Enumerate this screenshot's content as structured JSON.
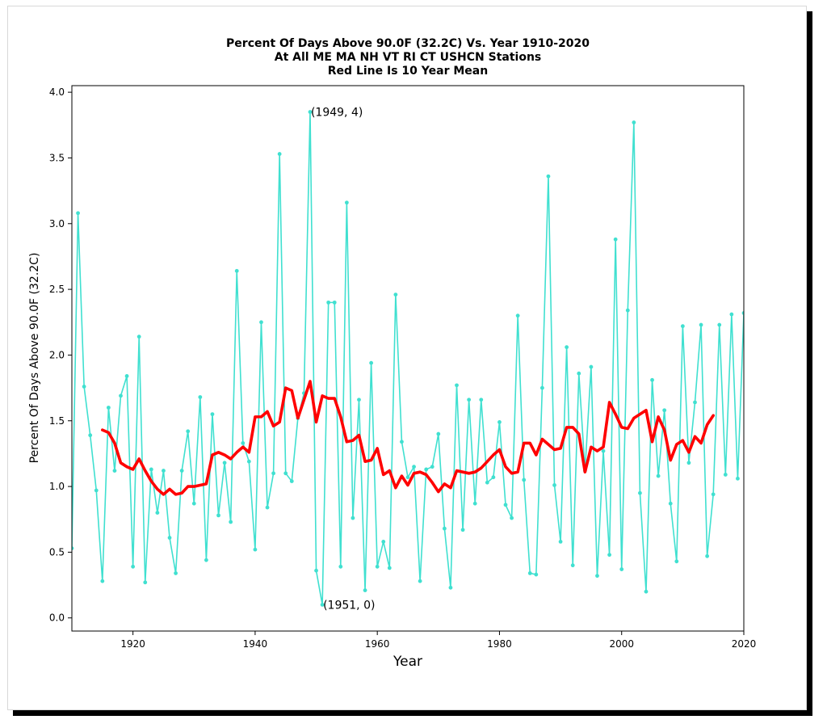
{
  "chart_data": {
    "type": "line",
    "title": [
      "Percent Of Days Above 90.0F (32.2C) Vs. Year 1910-2020",
      "At All ME MA NH VT RI CT USHCN Stations",
      "Red Line Is 10 Year Mean"
    ],
    "xlabel": "Year",
    "ylabel": "Percent Of Days Above 90.0F (32.2C)",
    "xlim": [
      1910,
      2020
    ],
    "ylim": [
      -0.1,
      4.05
    ],
    "xticks": [
      1920,
      1940,
      1960,
      1980,
      2000,
      2020
    ],
    "xtick_labels": [
      "1920",
      "1940",
      "1960",
      "1980",
      "2000",
      "2020"
    ],
    "yticks": [
      0.0,
      0.5,
      1.0,
      1.5,
      2.0,
      2.5,
      3.0,
      3.5,
      4.0
    ],
    "ytick_labels": [
      "0.0",
      "0.5",
      "1.0",
      "1.5",
      "2.0",
      "2.5",
      "3.0",
      "3.5",
      "4.0"
    ],
    "grid": false,
    "annotations": [
      {
        "text": "(1949, 4)",
        "x": 1949,
        "y": 3.85
      },
      {
        "text": "(1951, 0)",
        "x": 1951,
        "y": 0.1
      }
    ],
    "series": [
      {
        "color": "#40e0d0",
        "marker": true,
        "x": [
          1910,
          1911,
          1912,
          1913,
          1914,
          1915,
          1916,
          1917,
          1918,
          1919,
          1920,
          1921,
          1922,
          1923,
          1924,
          1925,
          1926,
          1927,
          1928,
          1929,
          1930,
          1931,
          1932,
          1933,
          1934,
          1935,
          1936,
          1937,
          1938,
          1939,
          1940,
          1941,
          1942,
          1943,
          1944,
          1945,
          1946,
          1947,
          1948,
          1949,
          1950,
          1951,
          1952,
          1953,
          1954,
          1955,
          1956,
          1957,
          1958,
          1959,
          1960,
          1961,
          1962,
          1963,
          1964,
          1965,
          1966,
          1967,
          1968,
          1969,
          1970,
          1971,
          1972,
          1973,
          1974,
          1975,
          1976,
          1977,
          1978,
          1979,
          1980,
          1981,
          1982,
          1983,
          1984,
          1985,
          1986,
          1987,
          1988,
          1989,
          1990,
          1991,
          1992,
          1993,
          1994,
          1995,
          1996,
          1997,
          1998,
          1999,
          2000,
          2001,
          2002,
          2003,
          2004,
          2005,
          2006,
          2007,
          2008,
          2009,
          2010,
          2011,
          2012,
          2013,
          2014,
          2015,
          2016,
          2017,
          2018,
          2019,
          2020
        ],
        "values": [
          0.53,
          3.08,
          1.76,
          1.39,
          0.97,
          0.28,
          1.6,
          1.12,
          1.69,
          1.84,
          0.39,
          2.14,
          0.27,
          1.13,
          0.8,
          1.12,
          0.61,
          0.34,
          1.12,
          1.42,
          0.87,
          1.68,
          0.44,
          1.55,
          0.78,
          1.18,
          0.73,
          2.64,
          1.33,
          1.19,
          0.52,
          2.25,
          0.84,
          1.1,
          3.53,
          1.1,
          1.04,
          1.52,
          1.71,
          3.85,
          0.36,
          0.1,
          2.4,
          2.4,
          0.39,
          3.16,
          0.76,
          1.66,
          0.21,
          1.94,
          0.39,
          0.58,
          0.38,
          2.46,
          1.34,
          1.07,
          1.15,
          0.28,
          1.13,
          1.15,
          1.4,
          0.68,
          0.23,
          1.77,
          0.67,
          1.66,
          0.87,
          1.66,
          1.03,
          1.07,
          1.49,
          0.86,
          0.76,
          2.3,
          1.05,
          0.34,
          0.33,
          1.75,
          3.36,
          1.01,
          0.58,
          2.06,
          0.4,
          1.86,
          1.12,
          1.91,
          0.32,
          1.27,
          0.48,
          2.88,
          0.37,
          2.34,
          3.77,
          0.95,
          0.2,
          1.81,
          1.08,
          1.58,
          0.87,
          0.43,
          2.22,
          1.18,
          1.64,
          2.23,
          0.47,
          0.94,
          2.23,
          1.09,
          2.31,
          1.06,
          2.32
        ]
      },
      {
        "color": "#ff0000",
        "marker": false,
        "x": [
          1915,
          1916,
          1917,
          1918,
          1919,
          1920,
          1921,
          1922,
          1923,
          1924,
          1925,
          1926,
          1927,
          1928,
          1929,
          1930,
          1931,
          1932,
          1933,
          1934,
          1935,
          1936,
          1937,
          1938,
          1939,
          1940,
          1941,
          1942,
          1943,
          1944,
          1945,
          1946,
          1947,
          1948,
          1949,
          1950,
          1951,
          1952,
          1953,
          1954,
          1955,
          1956,
          1957,
          1958,
          1959,
          1960,
          1961,
          1962,
          1963,
          1964,
          1965,
          1966,
          1967,
          1968,
          1969,
          1970,
          1971,
          1972,
          1973,
          1974,
          1975,
          1976,
          1977,
          1978,
          1979,
          1980,
          1981,
          1982,
          1983,
          1984,
          1985,
          1986,
          1987,
          1988,
          1989,
          1990,
          1991,
          1992,
          1993,
          1994,
          1995,
          1996,
          1997,
          1998,
          1999,
          2000,
          2001,
          2002,
          2003,
          2004,
          2005,
          2006,
          2007,
          2008,
          2009,
          2010,
          2011,
          2012,
          2013,
          2014,
          2015
        ],
        "values": [
          1.43,
          1.41,
          1.33,
          1.18,
          1.15,
          1.13,
          1.21,
          1.12,
          1.04,
          0.98,
          0.94,
          0.98,
          0.94,
          0.95,
          1.0,
          1.0,
          1.01,
          1.02,
          1.24,
          1.26,
          1.24,
          1.21,
          1.26,
          1.3,
          1.26,
          1.53,
          1.53,
          1.57,
          1.46,
          1.49,
          1.75,
          1.73,
          1.52,
          1.66,
          1.8,
          1.49,
          1.69,
          1.67,
          1.67,
          1.53,
          1.34,
          1.35,
          1.39,
          1.19,
          1.2,
          1.29,
          1.09,
          1.12,
          0.99,
          1.08,
          1.01,
          1.1,
          1.11,
          1.09,
          1.03,
          0.96,
          1.02,
          0.99,
          1.12,
          1.11,
          1.1,
          1.11,
          1.14,
          1.19,
          1.24,
          1.28,
          1.15,
          1.1,
          1.11,
          1.33,
          1.33,
          1.24,
          1.36,
          1.32,
          1.28,
          1.29,
          1.45,
          1.45,
          1.4,
          1.11,
          1.3,
          1.27,
          1.3,
          1.64,
          1.55,
          1.45,
          1.44,
          1.52,
          1.55,
          1.58,
          1.34,
          1.53,
          1.43,
          1.2,
          1.32,
          1.35,
          1.26,
          1.38,
          1.33,
          1.47,
          1.54
        ]
      }
    ]
  }
}
